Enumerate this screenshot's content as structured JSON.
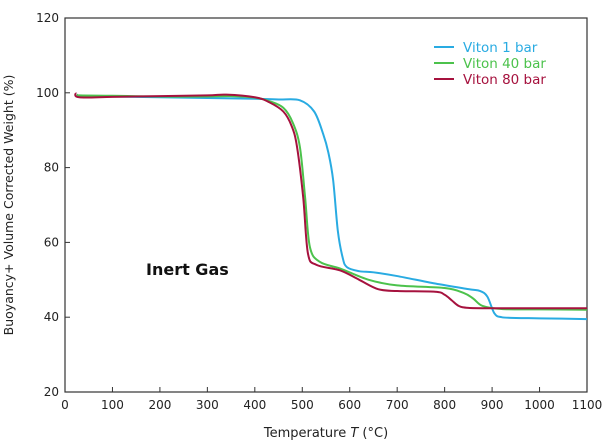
{
  "chart_data": {
    "type": "line",
    "xlabel": "Temperature T (°C)",
    "xlabel_parts": {
      "pre": "Temperature ",
      "italic": "T",
      "post": " (°C)"
    },
    "ylabel": "Buoyancy+ Volume Corrected Weight (%)",
    "xlim": [
      0,
      1100
    ],
    "ylim": [
      20,
      120
    ],
    "xticks": [
      0,
      100,
      200,
      300,
      400,
      500,
      600,
      700,
      800,
      900,
      1000,
      1100
    ],
    "yticks": [
      20,
      40,
      60,
      80,
      100,
      120
    ],
    "grid": false,
    "legend_position": "top-right",
    "annotation": "Inert Gas",
    "series": [
      {
        "name": "Viton 1 bar",
        "color": "#29abe2",
        "x": [
          25,
          30,
          100,
          200,
          300,
          400,
          450,
          495,
          525,
          544,
          555,
          565,
          575,
          585,
          594,
          620,
          650,
          700,
          780,
          850,
          875,
          890,
          905,
          920,
          950,
          1000,
          1100
        ],
        "y": [
          99.5,
          99.2,
          99,
          98.8,
          98.6,
          98.4,
          98.2,
          98,
          95,
          89,
          84,
          76.7,
          63,
          56,
          53.4,
          52.3,
          52,
          51,
          49,
          47.5,
          47,
          45.5,
          41,
          40,
          39.8,
          39.7,
          39.5
        ]
      },
      {
        "name": "Viton 40 bar",
        "color": "#4cc24c",
        "x": [
          25,
          30,
          100,
          200,
          300,
          350,
          400,
          430,
          460,
          480,
          495,
          506,
          516,
          537,
          580,
          640,
          700,
          800,
          840,
          860,
          880,
          920,
          1000,
          1100
        ],
        "y": [
          99.5,
          99.3,
          99.2,
          99,
          99,
          99.1,
          98.7,
          97.8,
          96,
          92,
          85.5,
          72,
          58.8,
          54.8,
          53,
          50,
          48.5,
          47.8,
          46.5,
          45,
          43,
          42.2,
          42.1,
          42
        ]
      },
      {
        "name": "Viton 80 bar",
        "color": "#a6123e",
        "x": [
          22,
          30,
          100,
          200,
          300,
          340,
          400,
          430,
          460,
          478,
          489,
          502,
          512,
          530,
          580,
          620,
          660,
          700,
          780,
          800,
          815,
          830,
          850,
          900,
          1000,
          1100
        ],
        "y": [
          100,
          98.8,
          98.9,
          99.1,
          99.3,
          99.5,
          98.8,
          97.5,
          95,
          91,
          85.5,
          72,
          57,
          54,
          52.5,
          50,
          47.5,
          47,
          46.8,
          46,
          44.5,
          43,
          42.5,
          42.4,
          42.4,
          42.4
        ]
      }
    ]
  }
}
